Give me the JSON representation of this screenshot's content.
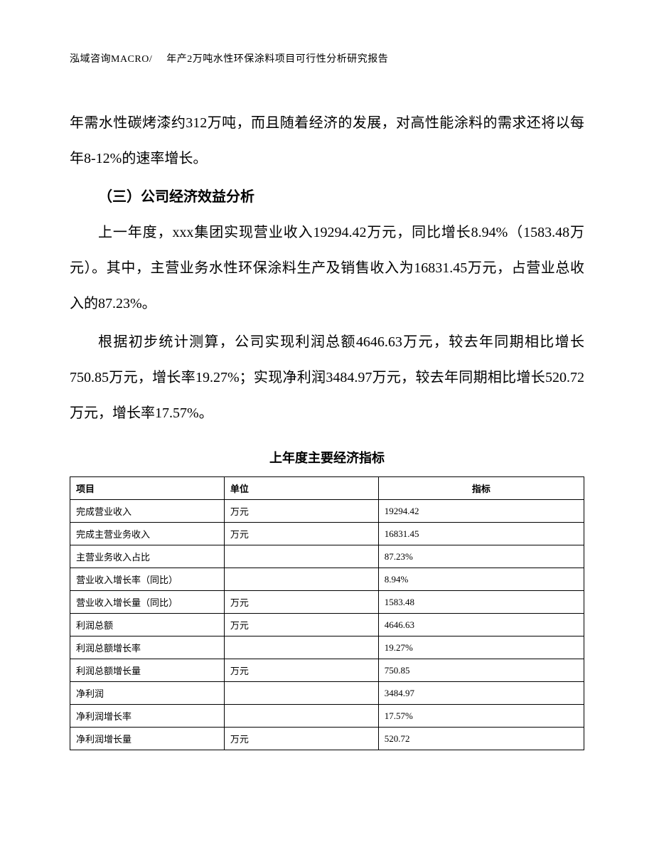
{
  "header": {
    "company": "泓域咨询MACRO/",
    "doc_title": "年产2万吨水性环保涂料项目可行性分析研究报告"
  },
  "body": {
    "para1": "年需水性碳烤漆约312万吨，而且随着经济的发展，对高性能涂料的需求还将以每年8-12%的速率增长。",
    "section_heading": "（三）公司经济效益分析",
    "para2": "上一年度，xxx集团实现营业收入19294.42万元，同比增长8.94%（1583.48万元）。其中，主营业务水性环保涂料生产及销售收入为16831.45万元，占营业总收入的87.23%。",
    "para3": "根据初步统计测算，公司实现利润总额4646.63万元，较去年同期相比增长750.85万元，增长率19.27%；实现净利润3484.97万元，较去年同期相比增长520.72万元，增长率17.57%。"
  },
  "table": {
    "title": "上年度主要经济指标",
    "columns": [
      "项目",
      "单位",
      "指标"
    ],
    "rows": [
      [
        "完成营业收入",
        "万元",
        "19294.42"
      ],
      [
        "完成主营业务收入",
        "万元",
        "16831.45"
      ],
      [
        "主营业务收入占比",
        "",
        "87.23%"
      ],
      [
        "营业收入增长率（同比）",
        "",
        "8.94%"
      ],
      [
        "营业收入增长量（同比）",
        "万元",
        "1583.48"
      ],
      [
        "利润总额",
        "万元",
        "4646.63"
      ],
      [
        "利润总额增长率",
        "",
        "19.27%"
      ],
      [
        "利润总额增长量",
        "万元",
        "750.85"
      ],
      [
        "净利润",
        "",
        "3484.97"
      ],
      [
        "净利润增长率",
        "",
        "17.57%"
      ],
      [
        "净利润增长量",
        "万元",
        "520.72"
      ]
    ]
  }
}
